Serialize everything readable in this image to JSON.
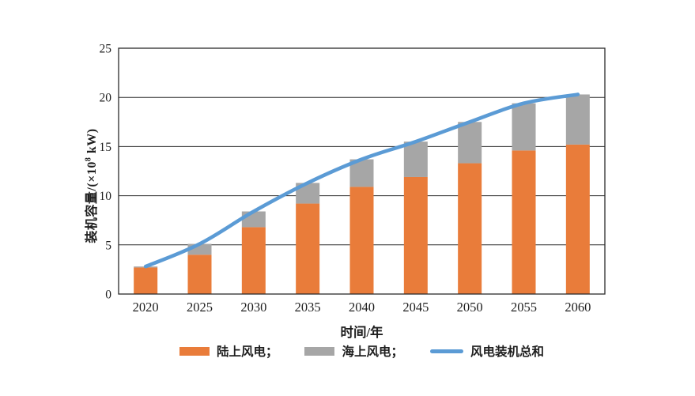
{
  "figure": {
    "background": "#ffffff"
  },
  "chart_data": {
    "type": "bar",
    "subtype": "stacked-bars-with-total-line",
    "title": "",
    "categories": [
      "2020",
      "2025",
      "2030",
      "2035",
      "2040",
      "2045",
      "2050",
      "2055",
      "2060"
    ],
    "series": [
      {
        "name": "陆上风电",
        "type": "bar",
        "stack": "capacity",
        "color": "#E97C3A",
        "values": [
          2.7,
          4.0,
          6.8,
          9.2,
          10.9,
          11.9,
          13.3,
          14.6,
          15.2
        ]
      },
      {
        "name": "海上风电",
        "type": "bar",
        "stack": "capacity",
        "color": "#A6A6A6",
        "values": [
          0.1,
          1.1,
          1.6,
          2.1,
          2.8,
          3.6,
          4.2,
          4.8,
          5.1
        ]
      },
      {
        "name": "风电装机总和",
        "type": "line",
        "color": "#5B9BD5",
        "values": [
          2.8,
          5.1,
          8.4,
          11.3,
          13.7,
          15.5,
          17.5,
          19.4,
          20.3
        ]
      }
    ],
    "xlabel": "时间/年",
    "ylabel": "装机容量/(×10⁸ kW)",
    "ylim": [
      0,
      25
    ],
    "yticks": [
      0,
      5,
      10,
      15,
      20,
      25
    ],
    "grid": true,
    "legend_position": "bottom"
  },
  "axes": {
    "x_title": "时间/年",
    "y_title": "装机容量/(×10⁸ kW)",
    "y_title_prefix": "装机容量/(×10",
    "y_title_sup": "8",
    "y_title_suffix": " kW)"
  },
  "legend": {
    "items": [
      {
        "label": "陆上风电；",
        "swatch": "orange-rect",
        "color": "#E97C3A"
      },
      {
        "label": "海上风电；",
        "swatch": "gray-rect",
        "color": "#A6A6A6"
      },
      {
        "label": "风电装机总和",
        "swatch": "blue-line",
        "color": "#5B9BD5"
      }
    ]
  },
  "colors": {
    "onshore_bar": "#E97C3A",
    "offshore_bar": "#A6A6A6",
    "total_line": "#5B9BD5",
    "axis": "#2B2B2B",
    "grid": "#2B2B2B",
    "text": "#1F1F1F"
  }
}
